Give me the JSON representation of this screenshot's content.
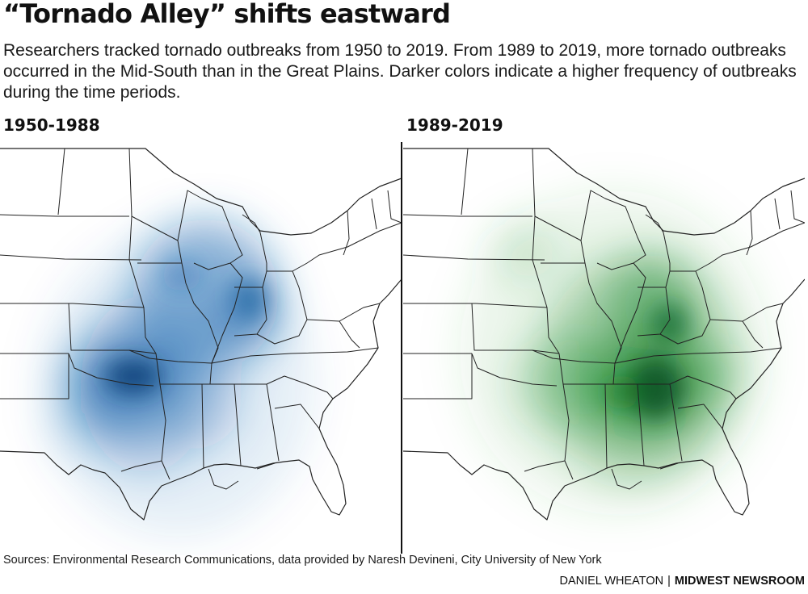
{
  "header": {
    "title": "“Tornado Alley” shifts eastward",
    "subtitle": "Researchers tracked tornado outbreaks from 1950 to 2019. From 1989 to 2019, more tornado outbreaks occurred in the Mid-South than in the Great Plains. Darker colors indicate a higher frequency of outbreaks during the time periods."
  },
  "panels": [
    {
      "label": "1950-1988",
      "color": "#0b5ea8"
    },
    {
      "label": "1989-2019",
      "color": "#0d7a1e"
    }
  ],
  "footer": {
    "source": "Sources: Environmental Research Communications, data provided by Naresh Devineni, City University of New York",
    "author": "DANIEL WHEATON",
    "separator": "|",
    "organization": "MIDWEST NEWSROOM"
  }
}
